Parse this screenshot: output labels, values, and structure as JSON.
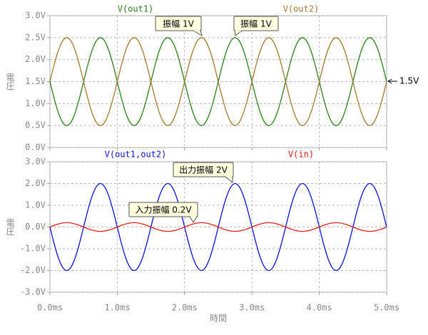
{
  "chart_data": [
    {
      "type": "line",
      "ylabel": "電圧",
      "x": [
        0,
        0.0625,
        0.125,
        0.1875,
        0.25,
        0.3125,
        0.375,
        0.4375,
        0.5,
        0.5625,
        0.625,
        0.6875,
        0.75,
        0.8125,
        0.875,
        0.9375,
        1,
        1.0625,
        1.125,
        1.1875,
        1.25,
        1.3125,
        1.375,
        1.4375,
        1.5,
        1.5625,
        1.625,
        1.6875,
        1.75,
        1.8125,
        1.875,
        1.9375,
        2,
        2.0625,
        2.125,
        2.1875,
        2.25,
        2.3125,
        2.375,
        2.4375,
        2.5,
        2.5625,
        2.625,
        2.6875,
        2.75,
        2.8125,
        2.875,
        2.9375,
        3,
        3.0625,
        3.125,
        3.1875,
        3.25,
        3.3125,
        3.375,
        3.4375,
        3.5,
        3.5625,
        3.625,
        3.6875,
        3.75,
        3.8125,
        3.875,
        3.9375,
        4,
        4.0625,
        4.125,
        4.1875,
        4.25,
        4.3125,
        4.375,
        4.4375,
        4.5,
        4.5625,
        4.625,
        4.6875,
        4.75,
        4.8125,
        4.875,
        4.9375,
        5
      ],
      "series": [
        {
          "name": "V(out1)",
          "color": "#2e7d1e",
          "values": [
            1.5,
            1.117,
            0.793,
            0.576,
            0.5,
            0.576,
            0.793,
            1.117,
            1.5,
            1.883,
            2.207,
            2.424,
            2.5,
            2.424,
            2.207,
            1.883,
            1.5,
            1.117,
            0.793,
            0.576,
            0.5,
            0.576,
            0.793,
            1.117,
            1.5,
            1.883,
            2.207,
            2.424,
            2.5,
            2.424,
            2.207,
            1.883,
            1.5,
            1.117,
            0.793,
            0.576,
            0.5,
            0.576,
            0.793,
            1.117,
            1.5,
            1.883,
            2.207,
            2.424,
            2.5,
            2.424,
            2.207,
            1.883,
            1.5,
            1.117,
            0.793,
            0.576,
            0.5,
            0.576,
            0.793,
            1.117,
            1.5,
            1.883,
            2.207,
            2.424,
            2.5,
            2.424,
            2.207,
            1.883,
            1.5,
            1.117,
            0.793,
            0.576,
            0.5,
            0.576,
            0.793,
            1.117,
            1.5,
            1.883,
            2.207,
            2.424,
            2.5,
            2.424,
            2.207,
            1.883,
            1.5
          ]
        },
        {
          "name": "V(out2)",
          "color": "#a07a32",
          "values": [
            1.5,
            1.883,
            2.207,
            2.424,
            2.5,
            2.424,
            2.207,
            1.883,
            1.5,
            1.117,
            0.793,
            0.576,
            0.5,
            0.576,
            0.793,
            1.117,
            1.5,
            1.883,
            2.207,
            2.424,
            2.5,
            2.424,
            2.207,
            1.883,
            1.5,
            1.117,
            0.793,
            0.576,
            0.5,
            0.576,
            0.793,
            1.117,
            1.5,
            1.883,
            2.207,
            2.424,
            2.5,
            2.424,
            2.207,
            1.883,
            1.5,
            1.117,
            0.793,
            0.576,
            0.5,
            0.576,
            0.793,
            1.117,
            1.5,
            1.883,
            2.207,
            2.424,
            2.5,
            2.424,
            2.207,
            1.883,
            1.5,
            1.117,
            0.793,
            0.576,
            0.5,
            0.576,
            0.793,
            1.117,
            1.5,
            1.883,
            2.207,
            2.424,
            2.5,
            2.424,
            2.207,
            1.883,
            1.5,
            1.117,
            0.793,
            0.576,
            0.5,
            0.576,
            0.793,
            1.117,
            1.5
          ]
        }
      ],
      "xlim": [
        0,
        5
      ],
      "xticks": [
        0,
        1,
        2,
        3,
        4,
        5
      ],
      "ylim": [
        0,
        3
      ],
      "yticks": [
        {
          "value": 0,
          "label": "0.0V"
        },
        {
          "value": 0.5,
          "label": "0.5V"
        },
        {
          "value": 1,
          "label": "1.0V"
        },
        {
          "value": 1.5,
          "label": "1.5V"
        },
        {
          "value": 2,
          "label": "2.0V"
        },
        {
          "value": 2.5,
          "label": "2.5V"
        },
        {
          "value": 3,
          "label": "3.0V"
        }
      ],
      "grid": true,
      "annotations": [
        "振幅 1V",
        "振幅 1V",
        "1.5V"
      ]
    },
    {
      "type": "line",
      "ylabel": "電圧",
      "xlabel": "時間",
      "x": [
        0,
        0.0625,
        0.125,
        0.1875,
        0.25,
        0.3125,
        0.375,
        0.4375,
        0.5,
        0.5625,
        0.625,
        0.6875,
        0.75,
        0.8125,
        0.875,
        0.9375,
        1,
        1.0625,
        1.125,
        1.1875,
        1.25,
        1.3125,
        1.375,
        1.4375,
        1.5,
        1.5625,
        1.625,
        1.6875,
        1.75,
        1.8125,
        1.875,
        1.9375,
        2,
        2.0625,
        2.125,
        2.1875,
        2.25,
        2.3125,
        2.375,
        2.4375,
        2.5,
        2.5625,
        2.625,
        2.6875,
        2.75,
        2.8125,
        2.875,
        2.9375,
        3,
        3.0625,
        3.125,
        3.1875,
        3.25,
        3.3125,
        3.375,
        3.4375,
        3.5,
        3.5625,
        3.625,
        3.6875,
        3.75,
        3.8125,
        3.875,
        3.9375,
        4,
        4.0625,
        4.125,
        4.1875,
        4.25,
        4.3125,
        4.375,
        4.4375,
        4.5,
        4.5625,
        4.625,
        4.6875,
        4.75,
        4.8125,
        4.875,
        4.9375,
        5
      ],
      "series": [
        {
          "name": "V(out1,out2)",
          "color": "#1010e0",
          "values": [
            0,
            -0.765,
            -1.414,
            -1.848,
            -2,
            -1.848,
            -1.414,
            -0.765,
            0,
            0.765,
            1.414,
            1.848,
            2,
            1.848,
            1.414,
            0.765,
            0,
            -0.765,
            -1.414,
            -1.848,
            -2,
            -1.848,
            -1.414,
            -0.765,
            0,
            0.765,
            1.414,
            1.848,
            2,
            1.848,
            1.414,
            0.765,
            0,
            -0.765,
            -1.414,
            -1.848,
            -2,
            -1.848,
            -1.414,
            -0.765,
            0,
            0.765,
            1.414,
            1.848,
            2,
            1.848,
            1.414,
            0.765,
            0,
            -0.765,
            -1.414,
            -1.848,
            -2,
            -1.848,
            -1.414,
            -0.765,
            0,
            0.765,
            1.414,
            1.848,
            2,
            1.848,
            1.414,
            0.765,
            0,
            -0.765,
            -1.414,
            -1.848,
            -2,
            -1.848,
            -1.414,
            -0.765,
            0,
            0.765,
            1.414,
            1.848,
            2,
            1.848,
            1.414,
            0.765,
            0
          ]
        },
        {
          "name": "V(in)",
          "color": "#e02020",
          "values": [
            0,
            0.077,
            0.141,
            0.185,
            0.2,
            0.185,
            0.141,
            0.077,
            0,
            -0.077,
            -0.141,
            -0.185,
            -0.2,
            -0.185,
            -0.141,
            -0.077,
            0,
            0.077,
            0.141,
            0.185,
            0.2,
            0.185,
            0.141,
            0.077,
            0,
            -0.077,
            -0.141,
            -0.185,
            -0.2,
            -0.185,
            -0.141,
            -0.077,
            0,
            0.077,
            0.141,
            0.185,
            0.2,
            0.185,
            0.141,
            0.077,
            0,
            -0.077,
            -0.141,
            -0.185,
            -0.2,
            -0.185,
            -0.141,
            -0.077,
            0,
            0.077,
            0.141,
            0.185,
            0.2,
            0.185,
            0.141,
            0.077,
            0,
            -0.077,
            -0.141,
            -0.185,
            -0.2,
            -0.185,
            -0.141,
            -0.077,
            0,
            0.077,
            0.141,
            0.185,
            0.2,
            0.185,
            0.141,
            0.077,
            0,
            -0.077,
            -0.141,
            -0.185,
            -0.2,
            -0.185,
            -0.141,
            -0.077,
            0
          ]
        }
      ],
      "xlim": [
        0,
        5
      ],
      "xticks": [
        {
          "value": 0,
          "label": "0.0ms"
        },
        {
          "value": 1,
          "label": "1.0ms"
        },
        {
          "value": 2,
          "label": "2.0ms"
        },
        {
          "value": 3,
          "label": "3.0ms"
        },
        {
          "value": 4,
          "label": "4.0ms"
        },
        {
          "value": 5,
          "label": "5.0ms"
        }
      ],
      "ylim": [
        -3,
        3
      ],
      "yticks": [
        {
          "value": -3,
          "label": "-3.0V"
        },
        {
          "value": -2,
          "label": "-2.0V"
        },
        {
          "value": -1,
          "label": "-1.0V"
        },
        {
          "value": 0,
          "label": "0.0V"
        },
        {
          "value": 1,
          "label": "1.0V"
        },
        {
          "value": 2,
          "label": "2.0V"
        },
        {
          "value": 3,
          "label": "3.0V"
        }
      ],
      "grid": true,
      "annotations": [
        "出力振幅 2V",
        "入力振幅 0.2V"
      ]
    }
  ]
}
